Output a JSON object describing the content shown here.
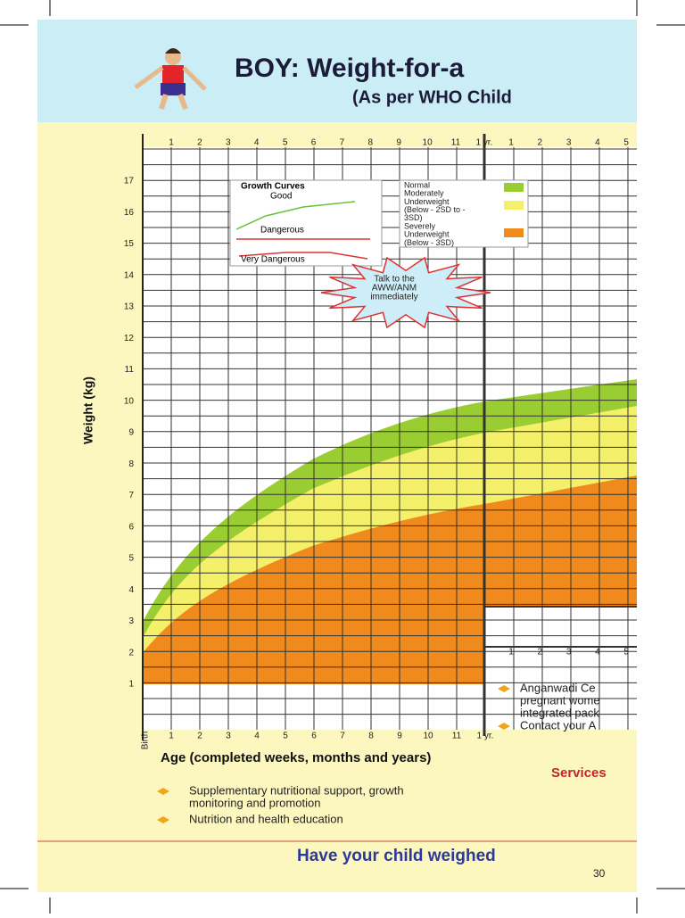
{
  "header": {
    "title": "BOY: Weight-for-a",
    "subtitle": "(As per WHO Child"
  },
  "chart": {
    "top_ticks": [
      "1",
      "2",
      "3",
      "4",
      "5",
      "6",
      "7",
      "8",
      "9",
      "10",
      "11",
      "1 yr."
    ],
    "right_top_ticks": [
      "1",
      "2",
      "3",
      "4",
      "5"
    ],
    "y_ticks": [
      "1",
      "2",
      "3",
      "4",
      "5",
      "6",
      "7",
      "8",
      "9",
      "10",
      "11",
      "12",
      "13",
      "14",
      "15",
      "16",
      "17"
    ],
    "y_label": "Weight (kg)",
    "bottom_ticks": [
      "Birth",
      "1",
      "2",
      "3",
      "4",
      "5",
      "6",
      "7",
      "8",
      "9",
      "10",
      "11",
      "1 yr."
    ],
    "right_bottom_ticks": [
      "1",
      "2",
      "3",
      "4",
      "5"
    ],
    "x_label": "Age (completed weeks, months and years)",
    "legend_curves": {
      "title": "Growth Curves",
      "items": [
        "Good",
        "Dangerous",
        "Very Dangerous"
      ]
    },
    "legend_bands": [
      {
        "lines": [
          "Normal"
        ]
      },
      {
        "lines": [
          "Moderately",
          "Underweight",
          "(Below - 2SD to -",
          "3SD)"
        ]
      },
      {
        "lines": [
          "Severely",
          "Underweight",
          "(Below - 3SD)"
        ]
      }
    ],
    "callout": [
      "Talk to the",
      "AWW/ANM",
      "immediately"
    ]
  },
  "right_notes": [
    [
      "Anganwadi Ce",
      "pregnant wome",
      "integrated pack"
    ],
    [
      "Contact your A"
    ]
  ],
  "services": {
    "title": "Services",
    "items": [
      [
        "Supplementary nutritional support, growth",
        "monitoring and promotion"
      ],
      [
        "Nutrition and health education"
      ]
    ]
  },
  "footer": {
    "tagline": "Have your child weighed",
    "page": "30"
  }
}
